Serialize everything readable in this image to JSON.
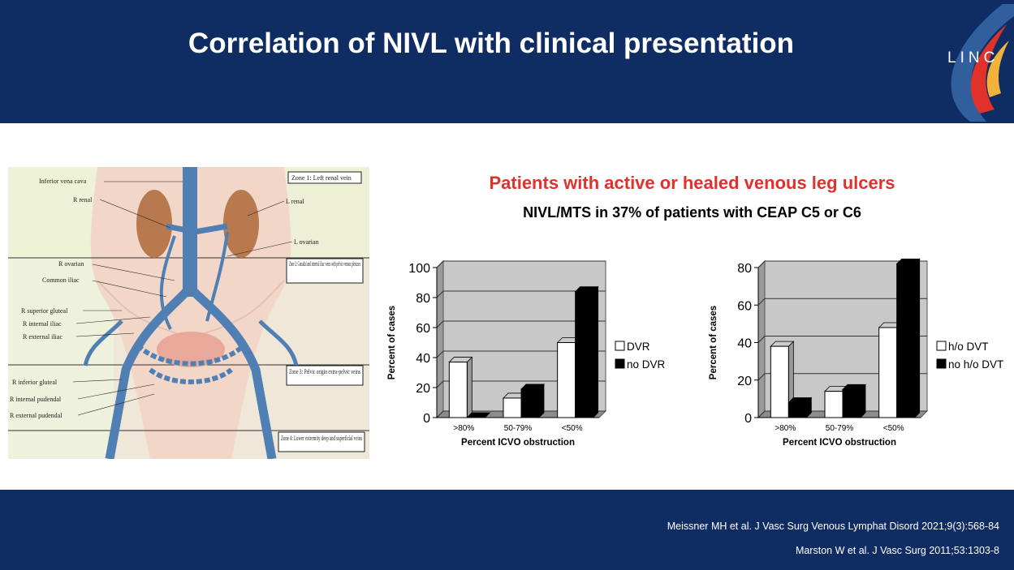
{
  "header": {
    "title": "Correlation of NIVL with clinical presentation",
    "logo_text": "LINC",
    "background": "#0f2d63"
  },
  "anatomy": {
    "labels": [
      "Inferior vena cava",
      "R renal",
      "L renal",
      "L ovarian",
      "R ovarian",
      "Common iliac",
      "R superior gluteal",
      "R internal iliac",
      "R external iliac",
      "R inferior gluteal",
      "R internal pudendal",
      "R external pudendal"
    ],
    "zones": [
      "Zone 1: Left renal vein",
      "Zone 2: Gonadal and internal iliac veins with pelvic venous plexuses",
      "Zone 3: Pelvic origin extra-pelvic veins",
      "Zone 4: Lower extremity deep and superficial veins"
    ]
  },
  "headline": {
    "subtitle": "Patients with active or healed venous leg ulcers",
    "detail": "NIVL/MTS in 37% of patients with CEAP C5 or C6",
    "accent": "#e0312a"
  },
  "chart_data": [
    {
      "type": "bar",
      "categories": [
        ">80%",
        "50-79%",
        "<50%"
      ],
      "series": [
        {
          "name": "DVR",
          "values": [
            37,
            13,
            50
          ],
          "color": "#ffffff"
        },
        {
          "name": "no DVR",
          "values": [
            0,
            19,
            84
          ],
          "color": "#000000"
        }
      ],
      "xlabel": "Percent ICVO obstruction",
      "ylabel": "Percent of cases",
      "ylim": [
        0,
        100
      ],
      "yticks": [
        0,
        20,
        40,
        60,
        80,
        100
      ],
      "grid": true,
      "style": "3d",
      "legend_position": "right"
    },
    {
      "type": "bar",
      "categories": [
        ">80%",
        "50-79%",
        "<50%"
      ],
      "series": [
        {
          "name": "h/o DVT",
          "values": [
            38,
            14,
            48
          ],
          "color": "#ffffff"
        },
        {
          "name": "no h/o DVT",
          "values": [
            8,
            15,
            82
          ],
          "color": "#000000"
        }
      ],
      "xlabel": "Percent ICVO obstruction",
      "ylabel": "Percent of cases",
      "ylim": [
        0,
        80
      ],
      "yticks": [
        0,
        20,
        40,
        60,
        80
      ],
      "grid": true,
      "style": "3d",
      "legend_position": "right"
    }
  ],
  "footer": {
    "ref1": "Meissner MH et al. J Vasc Surg Venous Lymphat Disord 2021;9(3):568-84",
    "ref2": "Marston W et al. J Vasc Surg 2011;53:1303-8"
  }
}
